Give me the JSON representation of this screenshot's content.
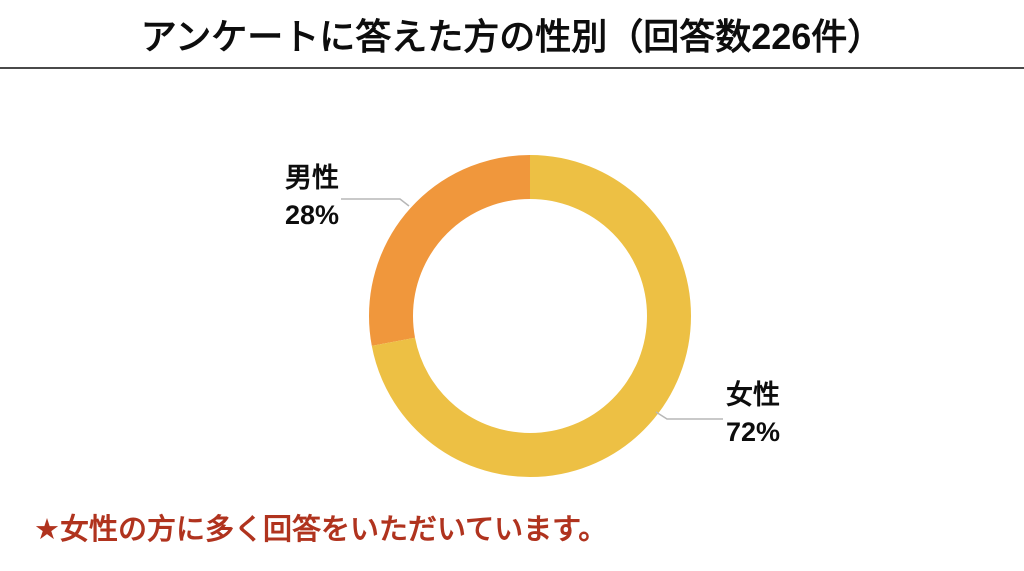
{
  "title": "アンケートに答えた方の性別（回答数226件）",
  "note": "★女性の方に多く回答をいただいています。",
  "colors": {
    "title_text": "#0d0d0d",
    "label_text": "#0d0d0d",
    "note_text": "#b0331e",
    "divider": "#4a4a4a",
    "leader_line": "#b7b7b7",
    "female_slice": "#edc044",
    "male_slice": "#f0973c",
    "background": "#ffffff"
  },
  "chart_data": {
    "type": "pie",
    "subtype": "donut",
    "title": "アンケートに答えた方の性別（回答数226件）",
    "response_count": 226,
    "categories": [
      "女性",
      "男性"
    ],
    "values": [
      72,
      28
    ],
    "unit": "%",
    "colors": [
      "#edc044",
      "#f0973c"
    ],
    "start_angle": "12 o'clock",
    "direction": "clockwise",
    "legend": "none",
    "grid": "off",
    "labels": [
      {
        "category": "女性",
        "text": "女性",
        "value_text": "72%",
        "position": "right-below"
      },
      {
        "category": "男性",
        "text": "男性",
        "value_text": "28%",
        "position": "left-above"
      }
    ]
  }
}
